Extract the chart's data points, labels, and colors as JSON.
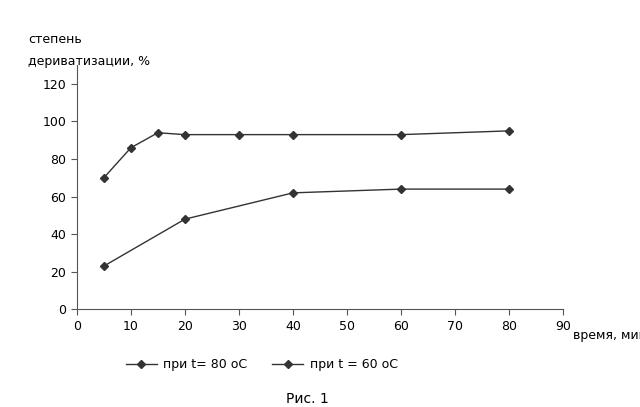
{
  "x_80": [
    5,
    10,
    15,
    20,
    30,
    40,
    60,
    80
  ],
  "y_80": [
    70,
    86,
    94,
    93,
    93,
    93,
    93,
    95
  ],
  "x_60": [
    5,
    20,
    40,
    60,
    80
  ],
  "y_60": [
    23,
    48,
    62,
    64,
    64
  ],
  "xlim": [
    0,
    90
  ],
  "ylim": [
    0,
    130
  ],
  "xticks": [
    0,
    10,
    20,
    30,
    40,
    50,
    60,
    70,
    80,
    90
  ],
  "yticks": [
    0,
    20,
    40,
    60,
    80,
    100,
    120
  ],
  "ylabel_line1": "степень",
  "ylabel_line2": "дериватизации, %",
  "xlabel_side": "время, мин",
  "legend_80": "при t= 80 оС",
  "legend_60": "при t = 60 оС",
  "caption": "Рис. 1",
  "line_color": "#333333",
  "marker": "D",
  "marker_size": 4,
  "bg_color": "#ffffff",
  "fontsize": 9
}
